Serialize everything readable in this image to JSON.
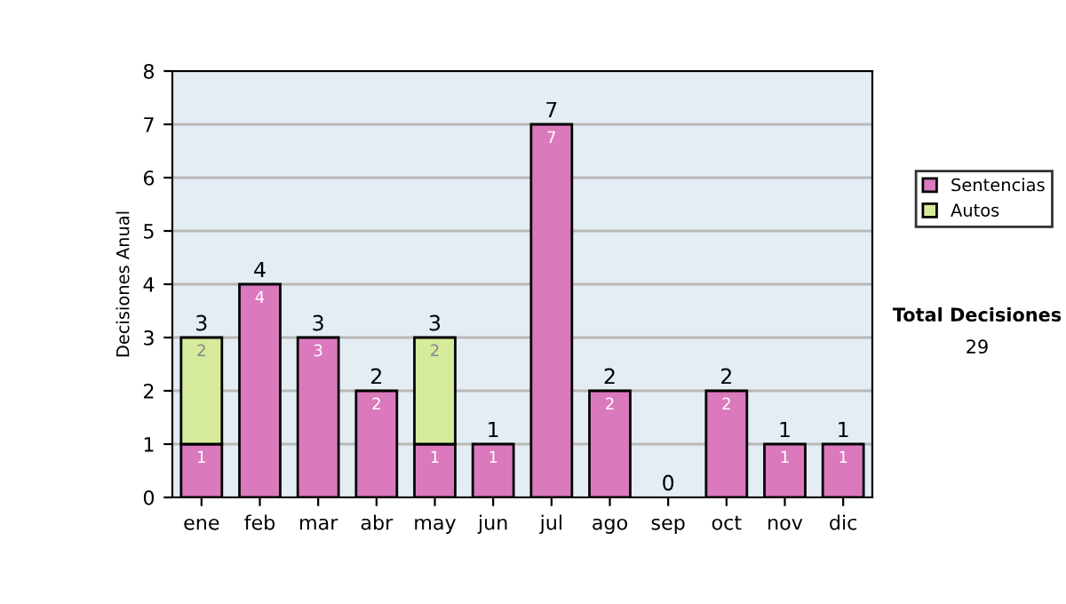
{
  "chart_data": {
    "type": "bar",
    "stacked": true,
    "ylabel": "Decisiones Anual",
    "categories": [
      "ene",
      "feb",
      "mar",
      "abr",
      "may",
      "jun",
      "jul",
      "ago",
      "sep",
      "oct",
      "nov",
      "dic"
    ],
    "series": [
      {
        "name": "Sentencias",
        "color": "#db79bd",
        "values": [
          1,
          4,
          3,
          2,
          1,
          1,
          7,
          2,
          0,
          2,
          1,
          1
        ],
        "value_labels": [
          "1",
          "4",
          "3",
          "2",
          "1",
          "1",
          "7",
          "2",
          null,
          "2",
          "1",
          "1"
        ]
      },
      {
        "name": "Autos",
        "color": "#d5eb9b",
        "values": [
          2,
          0,
          0,
          0,
          2,
          0,
          0,
          0,
          0,
          0,
          0,
          0
        ],
        "value_labels": [
          "2",
          null,
          null,
          null,
          "2",
          null,
          null,
          null,
          null,
          null,
          null,
          null
        ]
      }
    ],
    "totals": [
      "3",
      "4",
      "3",
      "2",
      "3",
      "1",
      "7",
      "2",
      "0",
      "2",
      "1",
      "1"
    ],
    "ylim": [
      0,
      8
    ],
    "yticks": [
      0,
      1,
      2,
      3,
      4,
      5,
      6,
      7,
      8
    ],
    "grid": "y",
    "legend": "right",
    "annotations": [
      "Total Decisiones",
      "29"
    ]
  }
}
